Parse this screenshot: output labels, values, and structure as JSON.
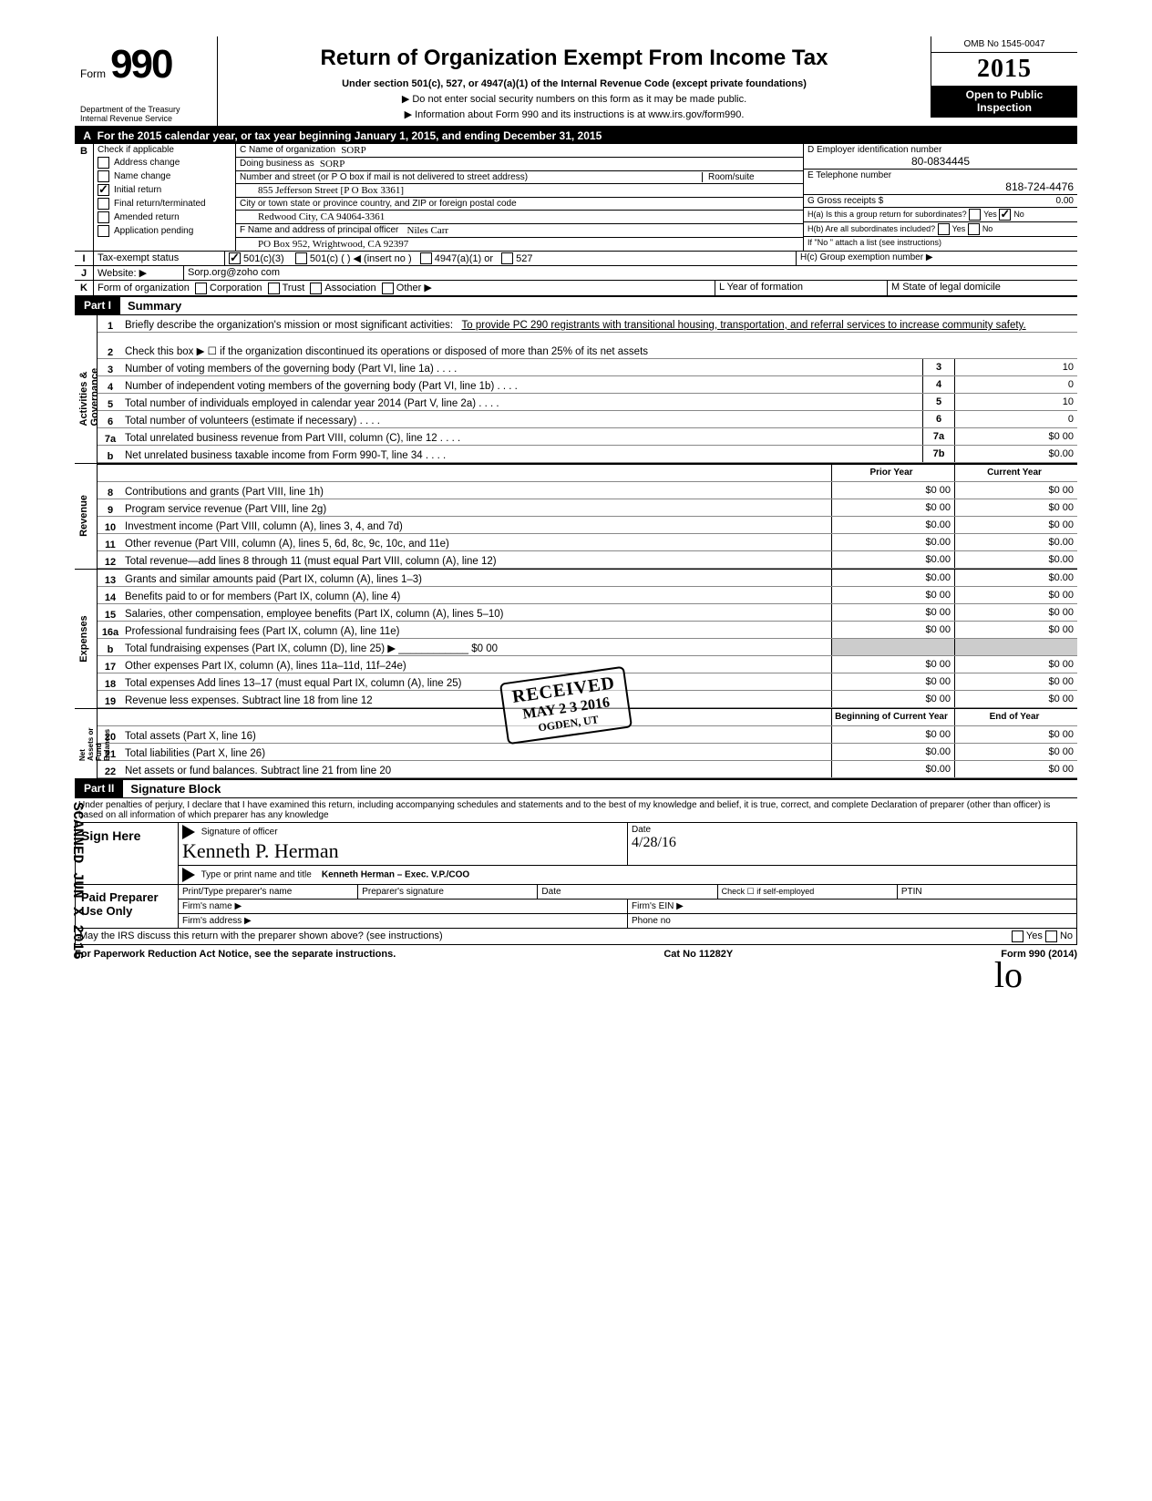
{
  "header": {
    "form_label": "Form",
    "form_number": "990",
    "dept": "Department of the Treasury\nInternal Revenue Service",
    "title": "Return of Organization Exempt From Income Tax",
    "subtitle": "Under section 501(c), 527, or 4947(a)(1) of the Internal Revenue Code (except private foundations)",
    "line2": "▶ Do not enter social security numbers on this form as it may be made public.",
    "line3": "▶ Information about Form 990 and its instructions is at www.irs.gov/form990.",
    "omb": "OMB No 1545-0047",
    "year": "2015",
    "open1": "Open to Public",
    "open2": "Inspection"
  },
  "lineA": "For the 2015 calendar year, or tax year beginning January 1, 2015, and ending December 31, 2015",
  "B": {
    "hdr": "Check if applicable",
    "opts": [
      "Address change",
      "Name change",
      "Initial return",
      "Final return/terminated",
      "Amended return",
      "Application pending"
    ],
    "checked_index": 2
  },
  "C": {
    "name_lbl": "C Name of organization",
    "name": "SORP",
    "dba_lbl": "Doing business as",
    "dba": "SORP",
    "street_lbl": "Number and street (or P O  box if mail is not delivered to street address)",
    "room_lbl": "Room/suite",
    "street": "855 Jefferson Street [P O  Box 3361]",
    "city_lbl": "City or town  state or province  country, and ZIP or foreign postal code",
    "city": "Redwood City, CA  94064-3361"
  },
  "D": {
    "lbl": "D Employer identification number",
    "val": "80-0834445"
  },
  "E": {
    "lbl": "E Telephone number",
    "val": "818-724-4476"
  },
  "F": {
    "lbl": "F Name and address of principal officer",
    "name": "Niles Carr",
    "addr": "PO Box 952, Wrightwood, CA 92397"
  },
  "G": {
    "lbl": "G Gross receipts $",
    "val": "0.00"
  },
  "H": {
    "a": "H(a) Is this a group return for subordinates?",
    "b": "H(b) Are all subordinates included?",
    "b_note": "If \"No \" attach a list  (see instructions)",
    "c": "H(c) Group exemption number ▶",
    "yes": "Yes",
    "no": "No"
  },
  "I": {
    "lbl": "Tax-exempt status",
    "opts": [
      "501(c)(3)",
      "501(c) (        ) ◀ (insert no )",
      "4947(a)(1) or",
      "527"
    ],
    "checked": 0
  },
  "J": {
    "lbl": "Website: ▶",
    "val": "Sorp.org@zoho com"
  },
  "K": {
    "lbl": "Form of organization",
    "opts": [
      "Corporation",
      "Trust",
      "Association",
      "Other ▶"
    ]
  },
  "L": {
    "lbl": "L Year of formation"
  },
  "M": {
    "lbl": "M State of legal domicile"
  },
  "partI": {
    "tag": "Part I",
    "title": "Summary",
    "side1": "Activities & Governance",
    "side2": "Revenue",
    "side3": "Expenses",
    "side4": "Net Assets or\nFund Balances",
    "l1_lbl": "Briefly describe the organization's mission or most significant activities:",
    "l1_val": "To provide PC 290 registrants with transitional housing, transportation, and referral services to increase community safety.",
    "l2": "Check this box ▶ ☐ if the organization discontinued its operations or disposed of more than 25% of its net assets",
    "rows_gov": [
      {
        "n": "3",
        "d": "Number of voting members of the governing body (Part VI, line 1a)",
        "box": "3",
        "v": "10"
      },
      {
        "n": "4",
        "d": "Number of independent voting members of the governing body (Part VI, line 1b)",
        "box": "4",
        "v": "0"
      },
      {
        "n": "5",
        "d": "Total number of individuals employed in calendar year 2014 (Part V, line 2a)",
        "box": "5",
        "v": "10"
      },
      {
        "n": "6",
        "d": "Total number of volunteers (estimate if necessary)",
        "box": "6",
        "v": "0"
      },
      {
        "n": "7a",
        "d": "Total unrelated business revenue from Part VIII, column (C), line 12",
        "box": "7a",
        "v": "$0 00"
      },
      {
        "n": "b",
        "d": "Net unrelated business taxable income from Form 990-T, line 34",
        "box": "7b",
        "v": "$0.00"
      }
    ],
    "col_py": "Prior Year",
    "col_cy": "Current Year",
    "rows_rev": [
      {
        "n": "8",
        "d": "Contributions and grants (Part VIII, line 1h)",
        "py": "$0 00",
        "cy": "$0 00"
      },
      {
        "n": "9",
        "d": "Program service revenue (Part VIII, line 2g)",
        "py": "$0 00",
        "cy": "$0 00"
      },
      {
        "n": "10",
        "d": "Investment income (Part VIII, column (A), lines 3, 4, and 7d)",
        "py": "$0.00",
        "cy": "$0 00"
      },
      {
        "n": "11",
        "d": "Other revenue (Part VIII, column (A), lines 5, 6d, 8c, 9c, 10c, and 11e)",
        "py": "$0.00",
        "cy": "$0.00"
      },
      {
        "n": "12",
        "d": "Total revenue—add lines 8 through 11 (must equal Part VIII, column (A), line 12)",
        "py": "$0.00",
        "cy": "$0.00"
      }
    ],
    "rows_exp": [
      {
        "n": "13",
        "d": "Grants and similar amounts paid (Part IX, column (A), lines 1–3)",
        "py": "$0.00",
        "cy": "$0.00"
      },
      {
        "n": "14",
        "d": "Benefits paid to or for members (Part IX, column (A), line 4)",
        "py": "$0 00",
        "cy": "$0 00"
      },
      {
        "n": "15",
        "d": "Salaries, other compensation, employee benefits (Part IX, column (A), lines 5–10)",
        "py": "$0 00",
        "cy": "$0 00"
      },
      {
        "n": "16a",
        "d": "Professional fundraising fees (Part IX, column (A),  line 11e)",
        "py": "$0 00",
        "cy": "$0 00"
      },
      {
        "n": "b",
        "d": "Total fundraising expenses (Part IX, column (D), line 25) ▶ ____________ $0 00",
        "py": "",
        "cy": ""
      },
      {
        "n": "17",
        "d": "Other expenses  Part IX, column (A), lines 11a–11d, 11f–24e)",
        "py": "$0 00",
        "cy": "$0 00"
      },
      {
        "n": "18",
        "d": "Total expenses  Add lines 13–17 (must equal Part IX, column (A), line 25)",
        "py": "$0 00",
        "cy": "$0 00"
      },
      {
        "n": "19",
        "d": "Revenue less expenses. Subtract line 18 from line 12",
        "py": "$0 00",
        "cy": "$0 00"
      }
    ],
    "col_boy": "Beginning of Current Year",
    "col_eoy": "End of Year",
    "rows_na": [
      {
        "n": "20",
        "d": "Total assets (Part X, line 16)",
        "py": "$0 00",
        "cy": "$0 00"
      },
      {
        "n": "21",
        "d": "Total liabilities (Part X, line 26)",
        "py": "$0.00",
        "cy": "$0 00"
      },
      {
        "n": "22",
        "d": "Net assets or fund balances. Subtract line 21 from line 20",
        "py": "$0.00",
        "cy": "$0 00"
      }
    ]
  },
  "stamp": {
    "r1": "RECEIVED",
    "r2": "MAY 2 3 2016",
    "r3": "OGDEN, UT"
  },
  "scanned": "SCANNED JUN X 2016",
  "partII": {
    "tag": "Part II",
    "title": "Signature Block",
    "penalty": "Under penalties of perjury, I declare that I have examined this return, including accompanying schedules and statements  and to the best of my knowledge  and belief, it is true, correct, and complete  Declaration of preparer (other than officer) is based on all information of which preparer has any knowledge",
    "sign_here": "Sign Here",
    "sig_lbl": "Signature of officer",
    "sig_cursive": "Kenneth P. Herman",
    "date_lbl": "Date",
    "date_val": "4/28/16",
    "name_lbl": "Type or print name and title",
    "name_val": "Kenneth Herman – Exec. V.P./COO",
    "paid": "Paid Preparer Use Only",
    "prep_name": "Print/Type preparer's name",
    "prep_sig": "Preparer's signature",
    "prep_date": "Date",
    "check_self": "Check ☐ if self-employed",
    "ptin": "PTIN",
    "firm_name": "Firm's name   ▶",
    "firm_ein": "Firm's EIN ▶",
    "firm_addr": "Firm's address ▶",
    "phone": "Phone no",
    "may_discuss": "May the IRS discuss this return with the preparer shown above? (see instructions)",
    "yes": "Yes",
    "no": "No"
  },
  "footer": {
    "left": "For Paperwork Reduction Act Notice, see the separate instructions.",
    "mid": "Cat  No  11282Y",
    "right": "Form 990 (2014)"
  },
  "initial": "lo"
}
